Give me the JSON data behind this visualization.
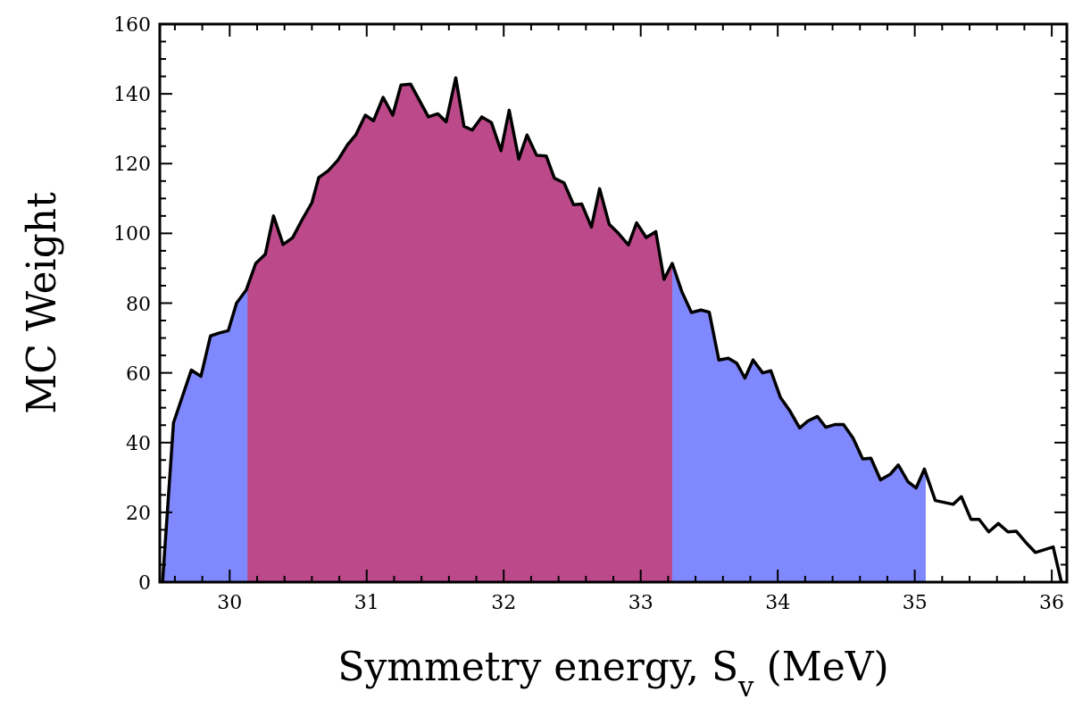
{
  "chart_data": {
    "type": "line",
    "xlabel": "Symmetry energy, S$_{v}$ (MeV)",
    "ylabel": "MC Weight",
    "x": [
      29.51,
      29.59,
      29.72,
      29.79,
      29.86,
      29.92,
      29.99,
      30.05,
      30.12,
      30.19,
      30.26,
      30.32,
      30.39,
      30.46,
      30.53,
      30.6,
      30.65,
      30.72,
      30.79,
      30.86,
      30.92,
      30.99,
      31.05,
      31.12,
      31.19,
      31.25,
      31.32,
      31.45,
      31.52,
      31.58,
      31.65,
      31.71,
      31.77,
      31.84,
      31.91,
      31.98,
      32.04,
      32.11,
      32.17,
      32.24,
      32.31,
      32.37,
      32.44,
      32.51,
      32.57,
      32.64,
      32.7,
      32.77,
      32.84,
      32.91,
      32.97,
      33.04,
      33.11,
      33.17,
      33.23,
      33.3,
      33.37,
      33.44,
      33.5,
      33.57,
      33.64,
      33.7,
      33.76,
      33.82,
      33.89,
      33.95,
      34.02,
      34.09,
      34.16,
      34.22,
      34.29,
      34.35,
      34.42,
      34.48,
      34.55,
      34.62,
      34.68,
      34.75,
      34.82,
      34.88,
      34.95,
      35.01,
      35.07,
      35.15,
      35.28,
      35.34,
      35.41,
      35.47,
      35.54,
      35.61,
      35.68,
      35.74,
      35.81,
      35.88,
      36.01,
      36.07
    ],
    "series": [
      {
        "color": "#000000",
        "values": [
          0,
          45.7,
          60.8,
          59,
          70.6,
          71.4,
          72.1,
          80,
          83.7,
          91.4,
          94,
          105,
          96.8,
          98.8,
          104,
          108.8,
          116,
          118,
          121,
          125.4,
          128.2,
          133.9,
          132.3,
          139,
          133.9,
          142.5,
          142.8,
          133.4,
          134.3,
          132,
          144.6,
          130.7,
          129.6,
          133.4,
          131.8,
          123.7,
          135.3,
          121.3,
          128.2,
          122.4,
          122.2,
          115.8,
          114.5,
          108.2,
          108.4,
          101.8,
          112.8,
          102.6,
          99.9,
          96.7,
          103,
          98.8,
          100.5,
          86.8,
          91.4,
          83.3,
          77.3,
          78,
          77.4,
          63.7,
          64.2,
          62.8,
          58.5,
          63.7,
          60,
          60.6,
          52.9,
          49,
          44.2,
          46.2,
          47.5,
          44.4,
          45.2,
          45.2,
          41.3,
          35.3,
          35.5,
          29.3,
          30.9,
          33.6,
          28.8,
          27,
          32.4,
          23.4,
          22.3,
          24.5,
          18,
          18,
          14.4,
          16.8,
          14.4,
          14.6,
          11.4,
          8.5,
          10.1,
          0
        ]
      }
    ],
    "bands": [
      {
        "axis": "x",
        "from": 29.51,
        "to": 35.08,
        "color": "#8088fe"
      },
      {
        "axis": "x",
        "from": 30.13,
        "to": 33.23,
        "color": "#bc4a8a"
      }
    ],
    "xlim": [
      29.49,
      36.11
    ],
    "ylim": [
      0,
      160
    ],
    "xticks": [
      {
        "value": 29.6,
        "label": null
      },
      {
        "value": 29.8,
        "label": null
      },
      30,
      {
        "value": 30.2,
        "label": null
      },
      {
        "value": 30.4,
        "label": null
      },
      {
        "value": 30.6,
        "label": null
      },
      {
        "value": 30.8,
        "label": null
      },
      31,
      {
        "value": 31.2,
        "label": null
      },
      {
        "value": 31.4,
        "label": null
      },
      {
        "value": 31.6,
        "label": null
      },
      {
        "value": 31.8,
        "label": null
      },
      32,
      {
        "value": 32.2,
        "label": null
      },
      {
        "value": 32.4,
        "label": null
      },
      {
        "value": 32.6,
        "label": null
      },
      {
        "value": 32.8,
        "label": null
      },
      33,
      {
        "value": 33.2,
        "label": null
      },
      {
        "value": 33.4,
        "label": null
      },
      {
        "value": 33.6,
        "label": null
      },
      {
        "value": 33.8,
        "label": null
      },
      34,
      {
        "value": 34.2,
        "label": null
      },
      {
        "value": 34.4,
        "label": null
      },
      {
        "value": 34.6,
        "label": null
      },
      {
        "value": 34.8,
        "label": null
      },
      35,
      {
        "value": 35.2,
        "label": null
      },
      {
        "value": 35.4,
        "label": null
      },
      {
        "value": 35.6,
        "label": null
      },
      {
        "value": 35.8,
        "label": null
      },
      36
    ],
    "yticks": [
      0,
      {
        "value": 5,
        "label": null
      },
      {
        "value": 10,
        "label": null
      },
      {
        "value": 15,
        "label": null
      },
      20,
      {
        "value": 25,
        "label": null
      },
      {
        "value": 30,
        "label": null
      },
      {
        "value": 35,
        "label": null
      },
      40,
      {
        "value": 45,
        "label": null
      },
      {
        "value": 50,
        "label": null
      },
      {
        "value": 55,
        "label": null
      },
      60,
      {
        "value": 65,
        "label": null
      },
      {
        "value": 70,
        "label": null
      },
      {
        "value": 75,
        "label": null
      },
      80,
      {
        "value": 85,
        "label": null
      },
      {
        "value": 90,
        "label": null
      },
      {
        "value": 95,
        "label": null
      },
      100,
      {
        "value": 105,
        "label": null
      },
      {
        "value": 110,
        "label": null
      },
      {
        "value": 115,
        "label": null
      },
      120,
      {
        "value": 125,
        "label": null
      },
      {
        "value": 130,
        "label": null
      },
      {
        "value": 135,
        "label": null
      },
      140,
      {
        "value": 145,
        "label": null
      },
      {
        "value": 150,
        "label": null
      },
      {
        "value": 155,
        "label": null
      },
      160
    ],
    "grid": false,
    "marker": "none",
    "line_style": "solid"
  }
}
